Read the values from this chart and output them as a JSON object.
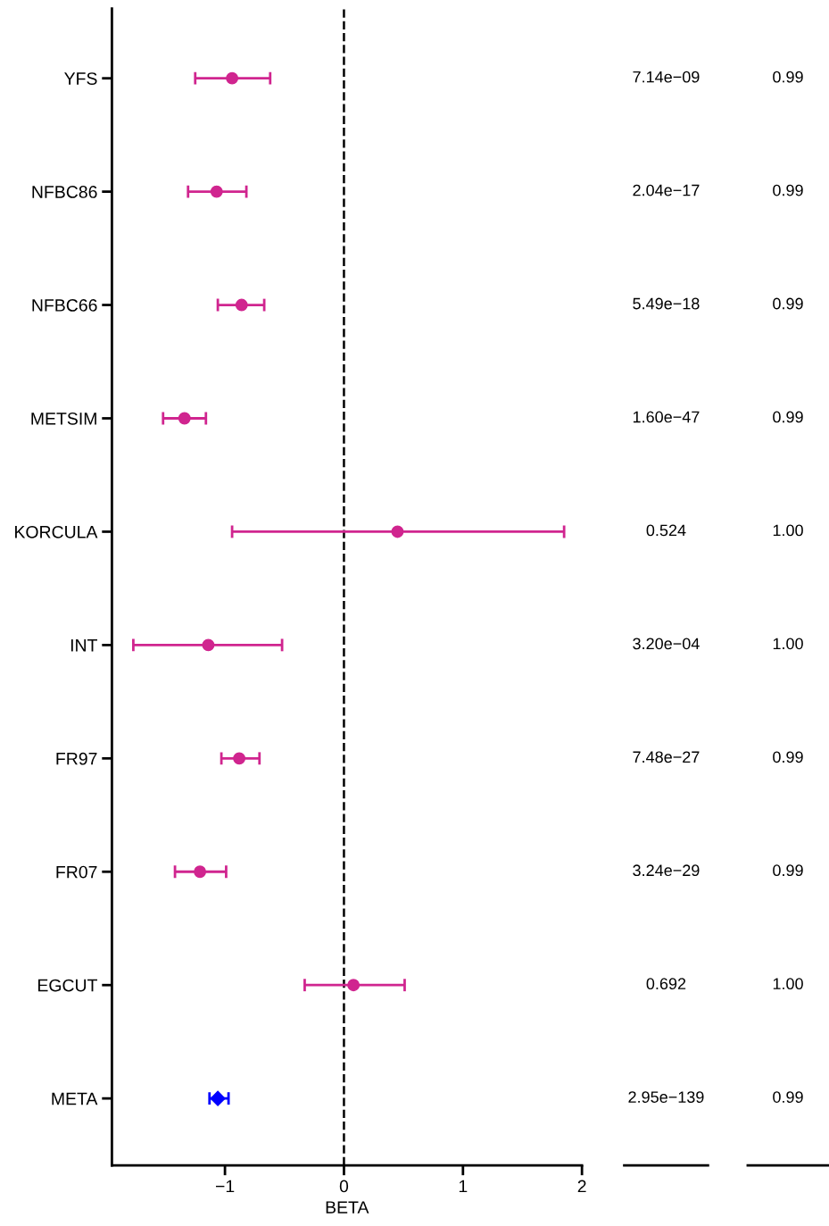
{
  "chart_data": {
    "type": "scatter",
    "orientation": "horizontal",
    "xlabel": "BETA",
    "categories": [
      "YFS",
      "NFBC86",
      "NFBC66",
      "METSIM",
      "KORCULA",
      "INT",
      "FR97",
      "FR07",
      "EGCUT",
      "META"
    ],
    "series": [
      {
        "color": "#d0258f",
        "marker": "circle",
        "values": [
          -0.94,
          -1.07,
          -0.86,
          -1.34,
          0.45,
          -1.14,
          -0.88,
          -1.21,
          0.08,
          null
        ],
        "errors": [
          [
            -1.25,
            -0.62
          ],
          [
            -1.31,
            -0.82
          ],
          [
            -1.06,
            -0.67
          ],
          [
            -1.52,
            -1.16
          ],
          [
            -0.94,
            1.85
          ],
          [
            -1.77,
            -0.52
          ],
          [
            -1.03,
            -0.71
          ],
          [
            -1.42,
            -0.99
          ],
          [
            -0.33,
            0.51
          ],
          null
        ]
      },
      {
        "color": "#0000ff",
        "marker": "diamond",
        "values": [
          null,
          null,
          null,
          null,
          null,
          null,
          null,
          null,
          null,
          -1.06
        ],
        "errors": [
          null,
          null,
          null,
          null,
          null,
          null,
          null,
          null,
          null,
          [
            -1.13,
            -0.97
          ]
        ]
      }
    ],
    "xlim": [
      -1.95,
      2
    ],
    "xticks": [
      {
        "value": -1,
        "label": "−1"
      },
      0,
      1,
      2
    ],
    "ref_lines": [
      {
        "axis": "x",
        "value": 0,
        "color": "#000000",
        "line_style": "dashed"
      }
    ],
    "grid": false,
    "annotations": [
      "7.14e−09",
      "2.04e−17",
      "5.49e−18",
      "1.60e−47",
      "0.524",
      "3.20e−04",
      "7.48e−27",
      "3.24e−29",
      "0.692",
      "2.95e−139",
      "0.99",
      "0.99",
      "0.99",
      "0.99",
      "1.00",
      "1.00",
      "0.99",
      "0.99",
      "1.00",
      "0.99"
    ]
  }
}
